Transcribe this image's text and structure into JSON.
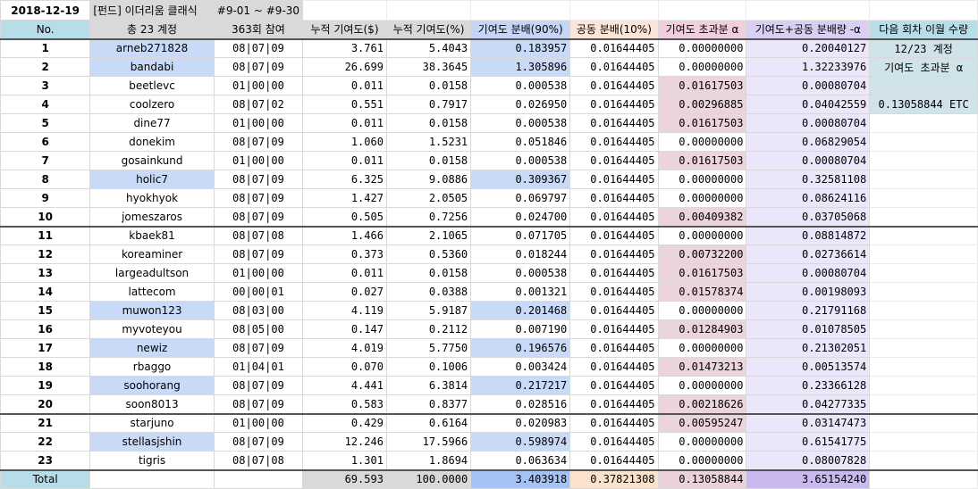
{
  "sheet": {
    "date": "2018-12-19",
    "fund_title": "[펀드] 이더리움 클래식",
    "period": "#9-01 ~ #9-30",
    "headers": {
      "no": "No.",
      "accounts": "총 23 계정",
      "participation": "363회 참여",
      "cum_contrib": "누적 기여도($)",
      "cum_contrib_pct": "누적 기여도(%)",
      "contrib_dist": "기여도 분배(90%)",
      "common_dist": "공동 분배(10%)",
      "excess": "기여도 초과분 α",
      "total_dist": "기여도+공동 분배량 -α",
      "next_carry": "다음 회차 이월 수량"
    },
    "side_panel": {
      "line1": "12/23 계정",
      "line2": "기여도 초과분 α",
      "value": "0.13058844 ETC"
    },
    "rows": [
      {
        "no": "1",
        "name": "arneb271828",
        "part": "08|07|09",
        "cum": "3.761",
        "pct": "5.4043",
        "dist90": "0.183957",
        "dist10": "0.01644405",
        "alpha": "0.00000000",
        "total": "0.20040127",
        "hl_name": true,
        "hl_dist": true,
        "hl_alpha": false
      },
      {
        "no": "2",
        "name": "bandabi",
        "part": "08|07|09",
        "cum": "26.699",
        "pct": "38.3645",
        "dist90": "1.305896",
        "dist10": "0.01644405",
        "alpha": "0.00000000",
        "total": "1.32233976",
        "hl_name": true,
        "hl_dist": true,
        "hl_alpha": false
      },
      {
        "no": "3",
        "name": "beetlevc",
        "part": "01|00|00",
        "cum": "0.011",
        "pct": "0.0158",
        "dist90": "0.000538",
        "dist10": "0.01644405",
        "alpha": "0.01617503",
        "total": "0.00080704",
        "hl_name": false,
        "hl_dist": false,
        "hl_alpha": true
      },
      {
        "no": "4",
        "name": "coolzero",
        "part": "08|07|02",
        "cum": "0.551",
        "pct": "0.7917",
        "dist90": "0.026950",
        "dist10": "0.01644405",
        "alpha": "0.00296885",
        "total": "0.04042559",
        "hl_name": false,
        "hl_dist": false,
        "hl_alpha": true
      },
      {
        "no": "5",
        "name": "dine77",
        "part": "01|00|00",
        "cum": "0.011",
        "pct": "0.0158",
        "dist90": "0.000538",
        "dist10": "0.01644405",
        "alpha": "0.01617503",
        "total": "0.00080704",
        "hl_name": false,
        "hl_dist": false,
        "hl_alpha": true
      },
      {
        "no": "6",
        "name": "donekim",
        "part": "08|07|09",
        "cum": "1.060",
        "pct": "1.5231",
        "dist90": "0.051846",
        "dist10": "0.01644405",
        "alpha": "0.00000000",
        "total": "0.06829054",
        "hl_name": false,
        "hl_dist": false,
        "hl_alpha": false
      },
      {
        "no": "7",
        "name": "gosainkund",
        "part": "01|00|00",
        "cum": "0.011",
        "pct": "0.0158",
        "dist90": "0.000538",
        "dist10": "0.01644405",
        "alpha": "0.01617503",
        "total": "0.00080704",
        "hl_name": false,
        "hl_dist": false,
        "hl_alpha": true
      },
      {
        "no": "8",
        "name": "holic7",
        "part": "08|07|09",
        "cum": "6.325",
        "pct": "9.0886",
        "dist90": "0.309367",
        "dist10": "0.01644405",
        "alpha": "0.00000000",
        "total": "0.32581108",
        "hl_name": true,
        "hl_dist": true,
        "hl_alpha": false
      },
      {
        "no": "9",
        "name": "hyokhyok",
        "part": "08|07|09",
        "cum": "1.427",
        "pct": "2.0505",
        "dist90": "0.069797",
        "dist10": "0.01644405",
        "alpha": "0.00000000",
        "total": "0.08624116",
        "hl_name": false,
        "hl_dist": false,
        "hl_alpha": false
      },
      {
        "no": "10",
        "name": "jomeszaros",
        "part": "08|07|09",
        "cum": "0.505",
        "pct": "0.7256",
        "dist90": "0.024700",
        "dist10": "0.01644405",
        "alpha": "0.00409382",
        "total": "0.03705068",
        "hl_name": false,
        "hl_dist": false,
        "hl_alpha": true
      },
      {
        "no": "11",
        "name": "kbaek81",
        "part": "08|07|08",
        "cum": "1.466",
        "pct": "2.1065",
        "dist90": "0.071705",
        "dist10": "0.01644405",
        "alpha": "0.00000000",
        "total": "0.08814872",
        "hl_name": false,
        "hl_dist": false,
        "hl_alpha": false
      },
      {
        "no": "12",
        "name": "koreaminer",
        "part": "08|07|09",
        "cum": "0.373",
        "pct": "0.5360",
        "dist90": "0.018244",
        "dist10": "0.01644405",
        "alpha": "0.00732200",
        "total": "0.02736614",
        "hl_name": false,
        "hl_dist": false,
        "hl_alpha": true
      },
      {
        "no": "13",
        "name": "largeadultson",
        "part": "01|00|00",
        "cum": "0.011",
        "pct": "0.0158",
        "dist90": "0.000538",
        "dist10": "0.01644405",
        "alpha": "0.01617503",
        "total": "0.00080704",
        "hl_name": false,
        "hl_dist": false,
        "hl_alpha": true
      },
      {
        "no": "14",
        "name": "lattecom",
        "part": "00|00|01",
        "cum": "0.027",
        "pct": "0.0388",
        "dist90": "0.001321",
        "dist10": "0.01644405",
        "alpha": "0.01578374",
        "total": "0.00198093",
        "hl_name": false,
        "hl_dist": false,
        "hl_alpha": true
      },
      {
        "no": "15",
        "name": "muwon123",
        "part": "08|03|00",
        "cum": "4.119",
        "pct": "5.9187",
        "dist90": "0.201468",
        "dist10": "0.01644405",
        "alpha": "0.00000000",
        "total": "0.21791168",
        "hl_name": true,
        "hl_dist": true,
        "hl_alpha": false
      },
      {
        "no": "16",
        "name": "myvoteyou",
        "part": "08|05|00",
        "cum": "0.147",
        "pct": "0.2112",
        "dist90": "0.007190",
        "dist10": "0.01644405",
        "alpha": "0.01284903",
        "total": "0.01078505",
        "hl_name": false,
        "hl_dist": false,
        "hl_alpha": true
      },
      {
        "no": "17",
        "name": "newiz",
        "part": "08|07|09",
        "cum": "4.019",
        "pct": "5.7750",
        "dist90": "0.196576",
        "dist10": "0.01644405",
        "alpha": "0.00000000",
        "total": "0.21302051",
        "hl_name": true,
        "hl_dist": true,
        "hl_alpha": false
      },
      {
        "no": "18",
        "name": "rbaggo",
        "part": "01|04|01",
        "cum": "0.070",
        "pct": "0.1006",
        "dist90": "0.003424",
        "dist10": "0.01644405",
        "alpha": "0.01473213",
        "total": "0.00513574",
        "hl_name": false,
        "hl_dist": false,
        "hl_alpha": true
      },
      {
        "no": "19",
        "name": "soohorang",
        "part": "08|07|09",
        "cum": "4.441",
        "pct": "6.3814",
        "dist90": "0.217217",
        "dist10": "0.01644405",
        "alpha": "0.00000000",
        "total": "0.23366128",
        "hl_name": true,
        "hl_dist": true,
        "hl_alpha": false
      },
      {
        "no": "20",
        "name": "soon8013",
        "part": "08|07|09",
        "cum": "0.583",
        "pct": "0.8377",
        "dist90": "0.028516",
        "dist10": "0.01644405",
        "alpha": "0.00218626",
        "total": "0.04277335",
        "hl_name": false,
        "hl_dist": false,
        "hl_alpha": true
      },
      {
        "no": "21",
        "name": "starjuno",
        "part": "01|00|00",
        "cum": "0.429",
        "pct": "0.6164",
        "dist90": "0.020983",
        "dist10": "0.01644405",
        "alpha": "0.00595247",
        "total": "0.03147473",
        "hl_name": false,
        "hl_dist": false,
        "hl_alpha": true
      },
      {
        "no": "22",
        "name": "stellasjshin",
        "part": "08|07|09",
        "cum": "12.246",
        "pct": "17.5966",
        "dist90": "0.598974",
        "dist10": "0.01644405",
        "alpha": "0.00000000",
        "total": "0.61541775",
        "hl_name": true,
        "hl_dist": true,
        "hl_alpha": false
      },
      {
        "no": "23",
        "name": "tigris",
        "part": "08|07|08",
        "cum": "1.301",
        "pct": "1.8694",
        "dist90": "0.063634",
        "dist10": "0.01644405",
        "alpha": "0.00000000",
        "total": "0.08007828",
        "hl_name": false,
        "hl_dist": false,
        "hl_alpha": false
      }
    ],
    "total": {
      "label": "Total",
      "cum": "69.593",
      "pct": "100.0000",
      "dist90": "3.403918",
      "dist10": "0.37821308",
      "alpha": "0.13058844",
      "total": "3.65154240"
    }
  }
}
